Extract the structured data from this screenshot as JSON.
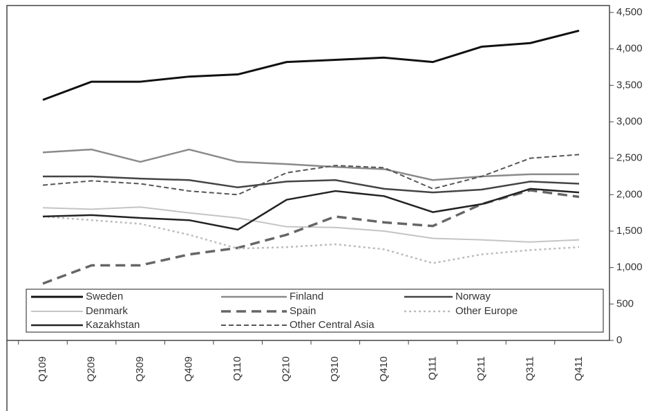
{
  "chart_data": {
    "type": "line",
    "categories": [
      "Q109",
      "Q209",
      "Q309",
      "Q409",
      "Q110",
      "Q210",
      "Q310",
      "Q410",
      "Q111",
      "Q211",
      "Q311",
      "Q411"
    ],
    "series": [
      {
        "name": "Sweden",
        "color": "#111111",
        "width": 3,
        "dash": "none",
        "values": [
          3300,
          3550,
          3550,
          3620,
          3650,
          3820,
          3850,
          3880,
          3820,
          4030,
          4080,
          4250
        ]
      },
      {
        "name": "Finland",
        "color": "#8a8a8a",
        "width": 2.5,
        "dash": "none",
        "values": [
          2580,
          2620,
          2450,
          2620,
          2450,
          2420,
          2380,
          2350,
          2200,
          2250,
          2280,
          2280
        ]
      },
      {
        "name": "Norway",
        "color": "#444444",
        "width": 2.5,
        "dash": "none",
        "values": [
          2250,
          2250,
          2220,
          2200,
          2100,
          2180,
          2200,
          2080,
          2030,
          2070,
          2180,
          2150
        ]
      },
      {
        "name": "Denmark",
        "color": "#c4c4c4",
        "width": 2,
        "dash": "none",
        "values": [
          1820,
          1800,
          1830,
          1750,
          1680,
          1560,
          1550,
          1500,
          1400,
          1380,
          1350,
          1380
        ]
      },
      {
        "name": "Spain",
        "color": "#666666",
        "width": 3.5,
        "dash": "14 8",
        "values": [
          780,
          1030,
          1030,
          1180,
          1270,
          1450,
          1700,
          1620,
          1570,
          1870,
          2060,
          1970
        ]
      },
      {
        "name": "Other Europe",
        "color": "#bbbbbb",
        "width": 2.5,
        "dash": "3 4",
        "values": [
          1700,
          1650,
          1600,
          1450,
          1260,
          1280,
          1320,
          1250,
          1060,
          1180,
          1240,
          1280
        ]
      },
      {
        "name": "Kazakhstan",
        "color": "#222222",
        "width": 2.5,
        "dash": "none",
        "values": [
          1700,
          1720,
          1680,
          1650,
          1520,
          1930,
          2050,
          1980,
          1760,
          1870,
          2080,
          2030
        ]
      },
      {
        "name": "Other Central Asia",
        "color": "#555555",
        "width": 2,
        "dash": "7 4",
        "values": [
          2130,
          2190,
          2150,
          2050,
          2000,
          2300,
          2400,
          2370,
          2080,
          2250,
          2500,
          2550
        ]
      }
    ],
    "ylim": [
      0,
      4500
    ],
    "yticks": [
      0,
      500,
      {
        "value": 1000,
        "label": "1,000"
      },
      {
        "value": 1500,
        "label": "1,500"
      },
      {
        "value": 2000,
        "label": "2,000"
      },
      {
        "value": 2500,
        "label": "2,500"
      },
      {
        "value": 3000,
        "label": "3,000"
      },
      {
        "value": 3500,
        "label": "3,500"
      },
      {
        "value": 4000,
        "label": "4,000"
      },
      {
        "value": 4500,
        "label": "4,500"
      }
    ],
    "legend": "lower left",
    "grid": false
  }
}
